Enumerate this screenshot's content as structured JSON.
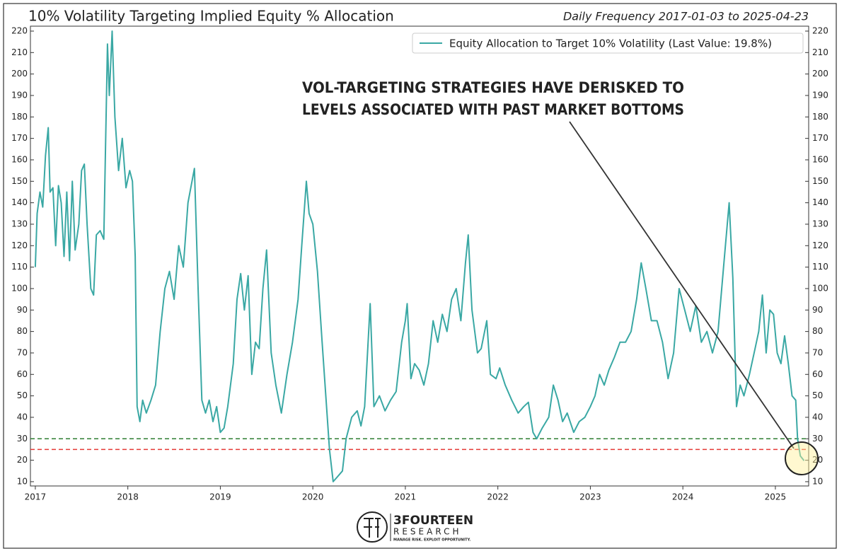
{
  "chart_data": {
    "type": "line",
    "title": "10% Volatility Targeting Implied Equity % Allocation",
    "subtitle": "Daily Frequency 2017-01-03 to 2025-04-23",
    "annotation": [
      "VOL-TARGETING STRATEGIES HAVE DERISKED TO",
      "LEVELS ASSOCIATED WITH PAST MARKET BOTTOMS"
    ],
    "brand": "3FOURTEEN",
    "brand_sub": "RESEARCH",
    "tagline": "MANAGE RISK. EXPLOIT OPPORTUNITY.",
    "legend": "upper right",
    "xlim": [
      2016.947,
      2025.36
    ],
    "xticks": [
      2017,
      2018,
      2019,
      2020,
      2021,
      2022,
      2023,
      2024,
      2025
    ],
    "ylim": [
      8,
      222.3
    ],
    "yticks": [
      10,
      20,
      30,
      40,
      50,
      60,
      70,
      80,
      90,
      100,
      110,
      120,
      130,
      140,
      150,
      160,
      170,
      180,
      190,
      200,
      210,
      220
    ],
    "hlines": [
      {
        "value": 30,
        "color": "#2e7d32"
      },
      {
        "value": 25,
        "color": "#e53935"
      }
    ],
    "x": [
      2017.0,
      2017.02,
      2017.05,
      2017.08,
      2017.11,
      2017.14,
      2017.16,
      2017.19,
      2017.22,
      2017.25,
      2017.28,
      2017.31,
      2017.34,
      2017.37,
      2017.4,
      2017.43,
      2017.47,
      2017.5,
      2017.53,
      2017.56,
      2017.6,
      2017.63,
      2017.66,
      2017.7,
      2017.74,
      2017.78,
      2017.8,
      2017.83,
      2017.86,
      2017.9,
      2017.94,
      2017.98,
      2018.02,
      2018.05,
      2018.08,
      2018.1,
      2018.13,
      2018.16,
      2018.2,
      2018.25,
      2018.3,
      2018.35,
      2018.4,
      2018.45,
      2018.5,
      2018.55,
      2018.6,
      2018.65,
      2018.72,
      2018.76,
      2018.8,
      2018.84,
      2018.88,
      2018.92,
      2018.96,
      2019.0,
      2019.04,
      2019.08,
      2019.14,
      2019.18,
      2019.22,
      2019.26,
      2019.3,
      2019.34,
      2019.38,
      2019.42,
      2019.46,
      2019.5,
      2019.55,
      2019.6,
      2019.66,
      2019.72,
      2019.78,
      2019.84,
      2019.88,
      2019.93,
      2019.96,
      2020.0,
      2020.05,
      2020.1,
      2020.14,
      2020.18,
      2020.22,
      2020.26,
      2020.32,
      2020.36,
      2020.42,
      2020.48,
      2020.52,
      2020.56,
      2020.62,
      2020.66,
      2020.72,
      2020.78,
      2020.84,
      2020.9,
      2020.96,
      2021.0,
      2021.02,
      2021.06,
      2021.1,
      2021.15,
      2021.2,
      2021.25,
      2021.3,
      2021.35,
      2021.4,
      2021.45,
      2021.5,
      2021.55,
      2021.6,
      2021.65,
      2021.68,
      2021.72,
      2021.78,
      2021.82,
      2021.88,
      2021.92,
      2021.98,
      2022.02,
      2022.08,
      2022.15,
      2022.22,
      2022.28,
      2022.33,
      2022.38,
      2022.42,
      2022.48,
      2022.55,
      2022.6,
      2022.65,
      2022.7,
      2022.75,
      2022.82,
      2022.88,
      2022.94,
      2023.0,
      2023.05,
      2023.1,
      2023.15,
      2023.2,
      2023.26,
      2023.32,
      2023.38,
      2023.44,
      2023.5,
      2023.55,
      2023.6,
      2023.66,
      2023.72,
      2023.78,
      2023.84,
      2023.9,
      2023.96,
      2024.02,
      2024.08,
      2024.14,
      2024.2,
      2024.26,
      2024.32,
      2024.38,
      2024.44,
      2024.5,
      2024.54,
      2024.58,
      2024.62,
      2024.66,
      2024.72,
      2024.78,
      2024.82,
      2024.86,
      2024.9,
      2024.94,
      2024.98,
      2025.02,
      2025.06,
      2025.1,
      2025.14,
      2025.18,
      2025.22,
      2025.24,
      2025.27,
      2025.31
    ],
    "series": [
      {
        "name": "Equity Allocation to Target 10% Volatility (Last Value: 19.8%)",
        "color": "#3aa8a4",
        "values": [
          110,
          135,
          145,
          138,
          162,
          175,
          145,
          147,
          120,
          148,
          140,
          115,
          145,
          113,
          150,
          118,
          130,
          155,
          158,
          130,
          100,
          97,
          125,
          127,
          123,
          214,
          190,
          220,
          180,
          155,
          170,
          147,
          155,
          150,
          115,
          45,
          38,
          48,
          42,
          48,
          55,
          80,
          100,
          108,
          95,
          120,
          110,
          140,
          156,
          100,
          48,
          42,
          48,
          38,
          45,
          33,
          35,
          45,
          65,
          95,
          107,
          90,
          106,
          60,
          75,
          72,
          100,
          118,
          70,
          55,
          42,
          60,
          75,
          95,
          120,
          150,
          135,
          130,
          108,
          75,
          50,
          25,
          10,
          12,
          15,
          30,
          40,
          43,
          36,
          45,
          93,
          45,
          50,
          43,
          48,
          52,
          75,
          85,
          93,
          58,
          65,
          62,
          55,
          65,
          85,
          75,
          88,
          80,
          95,
          100,
          85,
          112,
          125,
          90,
          70,
          72,
          85,
          60,
          58,
          63,
          55,
          48,
          42,
          45,
          47,
          33,
          30,
          35,
          40,
          55,
          48,
          38,
          42,
          33,
          38,
          40,
          45,
          50,
          60,
          55,
          62,
          68,
          75,
          75,
          80,
          95,
          112,
          100,
          85,
          85,
          75,
          58,
          70,
          100,
          90,
          80,
          92,
          75,
          80,
          70,
          80,
          110,
          140,
          105,
          45,
          55,
          50,
          60,
          72,
          80,
          97,
          70,
          90,
          88,
          70,
          65,
          78,
          65,
          50,
          48,
          30,
          22,
          19.8
        ]
      }
    ]
  }
}
